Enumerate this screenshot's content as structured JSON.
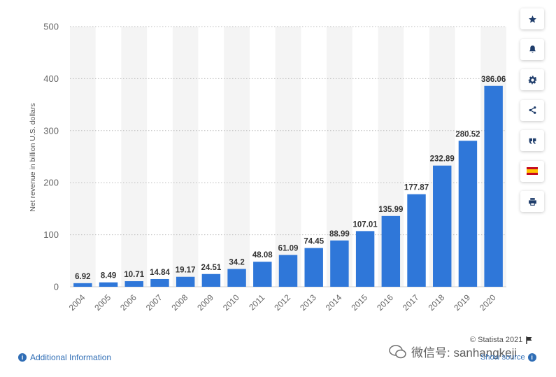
{
  "chart_data": {
    "type": "bar",
    "categories": [
      "2004",
      "2005",
      "2006",
      "2007",
      "2008",
      "2009",
      "2010",
      "2011",
      "2012",
      "2013",
      "2014",
      "2015",
      "2016",
      "2017",
      "2018",
      "2019",
      "2020"
    ],
    "values": [
      6.92,
      8.49,
      10.71,
      14.84,
      19.17,
      24.51,
      34.2,
      48.08,
      61.09,
      74.45,
      88.99,
      107.01,
      135.99,
      177.87,
      232.89,
      280.52,
      386.06
    ],
    "value_labels": [
      "6.92",
      "8.49",
      "10.71",
      "14.84",
      "19.17",
      "24.51",
      "34.2",
      "48.08",
      "61.09",
      "74.45",
      "88.99",
      "107.01",
      "135.99",
      "177.87",
      "232.89",
      "280.52",
      "386.06"
    ],
    "ylabel": "Net revenue in billion U.S. dollars",
    "ylim": [
      0,
      500
    ],
    "yticks": [
      0,
      100,
      200,
      300,
      400,
      500
    ],
    "bar_color": "#2f77d9",
    "grid": true,
    "alternating_column_bands": true
  },
  "toolbar": {
    "buttons": [
      {
        "name": "favorite",
        "icon": "star-icon"
      },
      {
        "name": "notification",
        "icon": "bell-icon"
      },
      {
        "name": "settings",
        "icon": "gear-icon"
      },
      {
        "name": "share",
        "icon": "share-icon"
      },
      {
        "name": "cite",
        "icon": "quote-icon"
      },
      {
        "name": "language",
        "icon": "spain-flag-icon"
      },
      {
        "name": "print",
        "icon": "print-icon"
      }
    ]
  },
  "footer": {
    "additional_info": "Additional Information",
    "credit": "© Statista 2021",
    "show_source": "Show source",
    "watermark": "微信号: sanhangkeji"
  }
}
